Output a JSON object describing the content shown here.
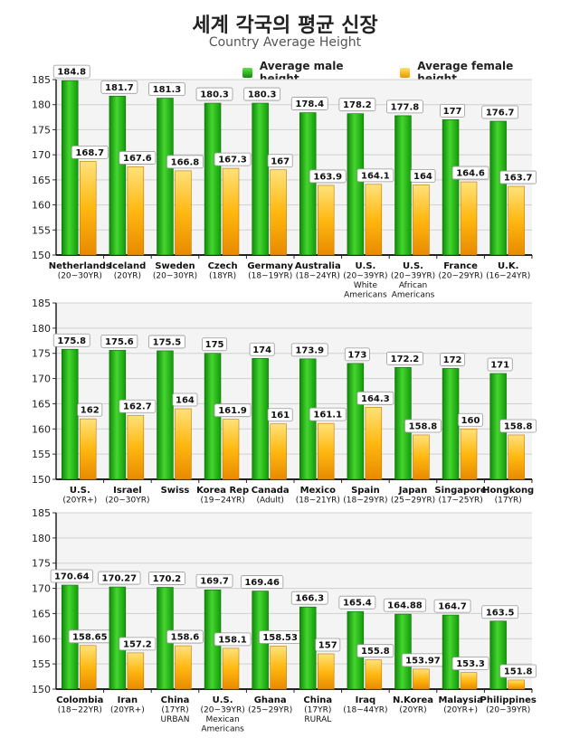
{
  "chart_data": [
    {
      "type": "bar",
      "title": "세계 각국의 평균 신장",
      "subtitle": "Country Average Height",
      "legend": {
        "placement": "top-right"
      },
      "colors": {
        "male": "#22b414",
        "female": "#f5b800"
      },
      "series_names": [
        "Average male height",
        "Average female height"
      ],
      "panels": [
        {
          "ylim": [
            150,
            185
          ],
          "yticks": [
            150,
            155,
            160,
            165,
            170,
            175,
            180,
            185
          ],
          "categories": [
            [
              "Netherlands",
              "(20~30YR)"
            ],
            [
              "Iceland",
              "(20YR)"
            ],
            [
              "Sweden",
              "(20~30YR)"
            ],
            [
              "Czech",
              "(18YR)"
            ],
            [
              "Germany",
              "(18~19YR)"
            ],
            [
              "Australia",
              "(18~24YR)"
            ],
            [
              "U.S.",
              "(20~39YR)",
              "White",
              "Americans"
            ],
            [
              "U.S.",
              "(20~39YR)",
              "African",
              "Americans"
            ],
            [
              "France",
              "(20~29YR)"
            ],
            [
              "U.K.",
              "(16~24YR)"
            ]
          ],
          "male": [
            184.8,
            181.7,
            181.3,
            180.3,
            180.3,
            178.4,
            178.2,
            177.8,
            177,
            176.7
          ],
          "female": [
            168.7,
            167.6,
            166.8,
            167.3,
            167,
            163.9,
            164.1,
            164,
            164.6,
            163.7
          ],
          "male_labels": [
            "184.8",
            "181.7",
            "181.3",
            "180.3",
            "180.3",
            "178.4",
            "178.2",
            "177.8",
            "177",
            "176.7"
          ],
          "female_labels": [
            "168.7",
            "167.6",
            "166.8",
            "167.3",
            "167",
            "163.9",
            "164.1",
            "164",
            "164.6",
            "163.7"
          ]
        },
        {
          "ylim": [
            150,
            185
          ],
          "yticks": [
            150,
            155,
            160,
            165,
            170,
            175,
            180,
            185
          ],
          "categories": [
            [
              "U.S.",
              "(20YR+)"
            ],
            [
              "Israel",
              "(20~30YR)"
            ],
            [
              "Swiss"
            ],
            [
              "Korea Rep",
              "(19~24YR)"
            ],
            [
              "Canada",
              "(Adult)"
            ],
            [
              "Mexico",
              "(18~21YR)"
            ],
            [
              "Spain",
              "(18~29YR)"
            ],
            [
              "Japan",
              "(25~29YR)"
            ],
            [
              "Singapore",
              "(17~25YR)"
            ],
            [
              "Hongkong",
              "(17YR)"
            ]
          ],
          "male": [
            175.8,
            175.6,
            175.5,
            175,
            174,
            173.9,
            173,
            172.2,
            172,
            171
          ],
          "female": [
            162,
            162.7,
            164,
            161.9,
            161,
            161.1,
            164.3,
            158.8,
            160,
            158.8
          ],
          "male_labels": [
            "175.8",
            "175.6",
            "175.5",
            "175",
            "174",
            "173.9",
            "173",
            "172.2",
            "172",
            "171"
          ],
          "female_labels": [
            "162",
            "162.7",
            "164",
            "161.9",
            "161",
            "161.1",
            "164.3",
            "158.8",
            "160",
            "158.8"
          ]
        },
        {
          "ylim": [
            150,
            185
          ],
          "yticks": [
            150,
            155,
            160,
            165,
            170,
            175,
            180,
            185
          ],
          "categories": [
            [
              "Colombia",
              "(18~22YR)"
            ],
            [
              "Iran",
              "(20YR+)"
            ],
            [
              "China",
              "(17YR)",
              "URBAN"
            ],
            [
              "U.S.",
              "(20~39YR)",
              "Mexican",
              "Americans"
            ],
            [
              "Ghana",
              "(25~29YR)"
            ],
            [
              "China",
              "(17YR)",
              "RURAL"
            ],
            [
              "Iraq",
              "(18~44YR)"
            ],
            [
              "N.Korea",
              "(20YR)"
            ],
            [
              "Malaysia",
              "(20YR+)"
            ],
            [
              "Philippines",
              "(20~39YR)"
            ]
          ],
          "male": [
            170.64,
            170.27,
            170.2,
            169.7,
            169.46,
            166.3,
            165.4,
            164.88,
            164.7,
            163.5
          ],
          "female": [
            158.65,
            157.2,
            158.6,
            158.1,
            158.53,
            157,
            155.8,
            153.97,
            153.3,
            151.8
          ],
          "male_labels": [
            "170.64",
            "170.27",
            "170.2",
            "169.7",
            "169.46",
            "166.3",
            "165.4",
            "164.88",
            "164.7",
            "163.5"
          ],
          "female_labels": [
            "158.65",
            "157.2",
            "158.6",
            "158.1",
            "158.53",
            "157",
            "155.8",
            "153.97",
            "153.3",
            "151.8"
          ]
        }
      ]
    }
  ]
}
